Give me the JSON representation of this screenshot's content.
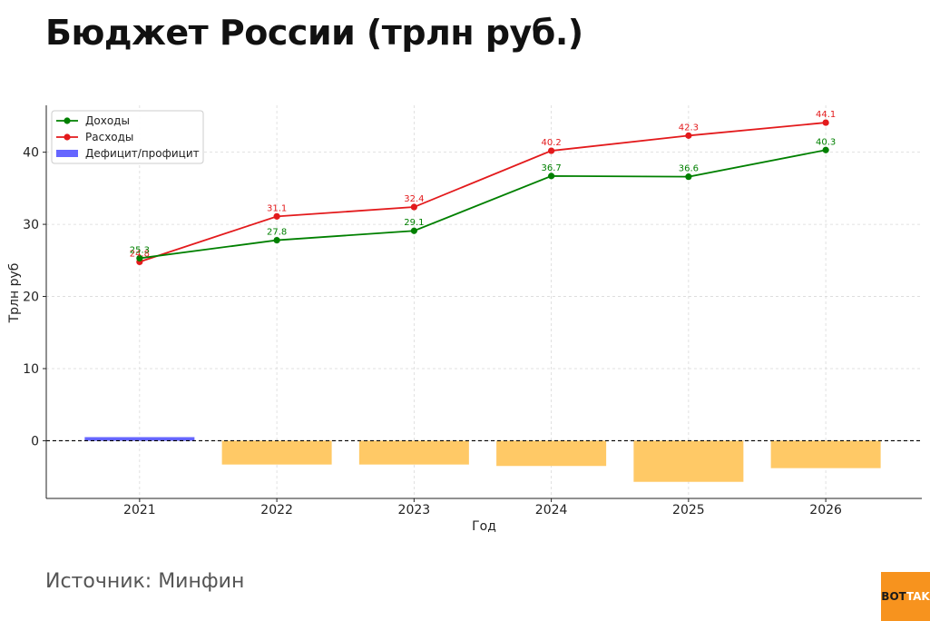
{
  "title": "Бюджет России (трлн руб.)",
  "source": "Источник: Минфин",
  "logo": {
    "part1": "BOT",
    "part2": "TAK"
  },
  "colors": {
    "income": "#008000",
    "expenses": "#e31a1c",
    "surplus": "#6666ff",
    "deficit": "#ffc966"
  },
  "chart_data": {
    "type": "line",
    "x": [
      2021,
      2022,
      2023,
      2024,
      2025,
      2026
    ],
    "xlabel": "Год",
    "ylabel": "Трлн руб",
    "ylim": [
      -8,
      46.5
    ],
    "yticks": [
      0,
      10,
      20,
      30,
      40
    ],
    "grid": true,
    "legend_position": "top-left",
    "series": [
      {
        "name": "Доходы",
        "type": "line",
        "values": [
          25.3,
          27.8,
          29.1,
          36.7,
          36.6,
          40.3
        ]
      },
      {
        "name": "Расходы",
        "type": "line",
        "values": [
          24.8,
          31.1,
          32.4,
          40.2,
          42.3,
          44.1
        ]
      },
      {
        "name": "Дефицит/профицит",
        "type": "bar",
        "values": [
          0.5,
          -3.3,
          -3.3,
          -3.5,
          -5.7,
          -3.8
        ]
      }
    ]
  }
}
